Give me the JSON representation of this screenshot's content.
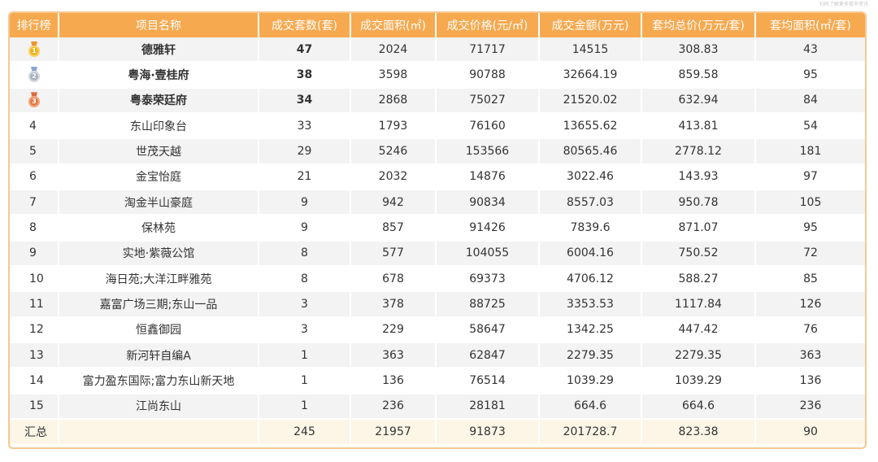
{
  "watermark": "扫码了解更多楼市资讯",
  "table": {
    "headers": [
      "排行榜",
      "项目名称",
      "成交套数(套)",
      "成交面积(㎡)",
      "成交价格(元/㎡)",
      "成交金额(万元)",
      "套均总价(万元/套)",
      "套均面积(㎡/套)"
    ],
    "rows": [
      {
        "rank": "1",
        "medal": "gold",
        "name": "德雅轩",
        "units": "47",
        "area": "2024",
        "price": "71717",
        "amount": "14515",
        "avg_total": "308.83",
        "avg_area": "43"
      },
      {
        "rank": "2",
        "medal": "silver",
        "name": "粤海·壹桂府",
        "units": "38",
        "area": "3598",
        "price": "90788",
        "amount": "32664.19",
        "avg_total": "859.58",
        "avg_area": "95"
      },
      {
        "rank": "3",
        "medal": "bronze",
        "name": "粤泰荣廷府",
        "units": "34",
        "area": "2868",
        "price": "75027",
        "amount": "21520.02",
        "avg_total": "632.94",
        "avg_area": "84"
      },
      {
        "rank": "4",
        "name": "东山印象台",
        "units": "33",
        "area": "1793",
        "price": "76160",
        "amount": "13655.62",
        "avg_total": "413.81",
        "avg_area": "54"
      },
      {
        "rank": "5",
        "name": "世茂天越",
        "units": "29",
        "area": "5246",
        "price": "153566",
        "amount": "80565.46",
        "avg_total": "2778.12",
        "avg_area": "181"
      },
      {
        "rank": "6",
        "name": "金宝怡庭",
        "units": "21",
        "area": "2032",
        "price": "14876",
        "amount": "3022.46",
        "avg_total": "143.93",
        "avg_area": "97"
      },
      {
        "rank": "7",
        "name": "淘金半山豪庭",
        "units": "9",
        "area": "942",
        "price": "90834",
        "amount": "8557.03",
        "avg_total": "950.78",
        "avg_area": "105"
      },
      {
        "rank": "8",
        "name": "保林苑",
        "units": "9",
        "area": "857",
        "price": "91426",
        "amount": "7839.6",
        "avg_total": "871.07",
        "avg_area": "95"
      },
      {
        "rank": "9",
        "name": "实地·紫薇公馆",
        "units": "8",
        "area": "577",
        "price": "104055",
        "amount": "6004.16",
        "avg_total": "750.52",
        "avg_area": "72"
      },
      {
        "rank": "10",
        "name": "海日苑;大洋江畔雅苑",
        "units": "8",
        "area": "678",
        "price": "69373",
        "amount": "4706.12",
        "avg_total": "588.27",
        "avg_area": "85"
      },
      {
        "rank": "11",
        "name": "嘉富广场三期;东山一品",
        "units": "3",
        "area": "378",
        "price": "88725",
        "amount": "3353.53",
        "avg_total": "1117.84",
        "avg_area": "126"
      },
      {
        "rank": "12",
        "name": "恒鑫御园",
        "units": "3",
        "area": "229",
        "price": "58647",
        "amount": "1342.25",
        "avg_total": "447.42",
        "avg_area": "76"
      },
      {
        "rank": "13",
        "name": "新河轩自编A",
        "units": "1",
        "area": "363",
        "price": "62847",
        "amount": "2279.35",
        "avg_total": "2279.35",
        "avg_area": "363"
      },
      {
        "rank": "14",
        "name": "富力盈东国际;富力东山新天地",
        "units": "1",
        "area": "136",
        "price": "76514",
        "amount": "1039.29",
        "avg_total": "1039.29",
        "avg_area": "136"
      },
      {
        "rank": "15",
        "name": "江尚东山",
        "units": "1",
        "area": "236",
        "price": "28181",
        "amount": "664.6",
        "avg_total": "664.6",
        "avg_area": "236"
      }
    ],
    "total": {
      "label": "汇总",
      "units": "245",
      "area": "21957",
      "price": "91873",
      "amount": "201728.7",
      "avg_total": "823.38",
      "avg_area": "90"
    }
  }
}
